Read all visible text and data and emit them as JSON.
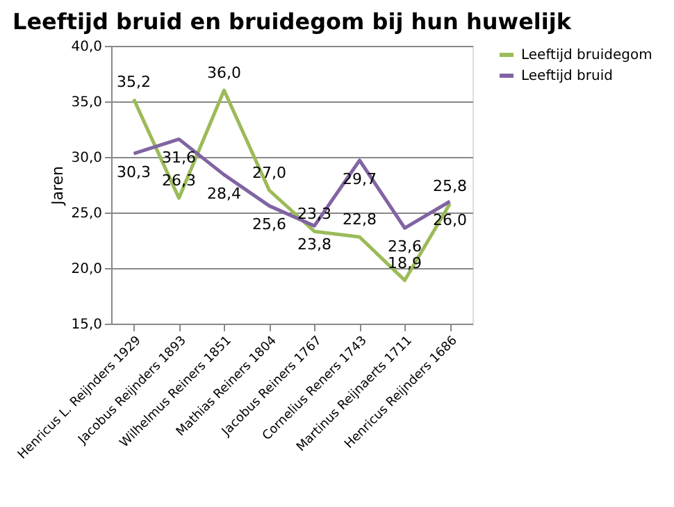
{
  "chart_data": {
    "type": "line",
    "title": "Leeftijd bruid en bruidegom bij hun huwelijk",
    "ylabel": "Jaren",
    "categories": [
      "Henricus L. Reijnders 1929",
      "Jacobus Reijnders 1893",
      "Wilhelmus Reiners 1851",
      "Mathias Reiners 1804",
      "Jacobus Reiners 1767",
      "Cornelius Reners 1743",
      "Martinus Reijnaerts 1711",
      "Henricus Reijnders 1686"
    ],
    "series": [
      {
        "name": "Leeftijd bruidegom",
        "color": "#9bbb59",
        "values": [
          35.2,
          26.3,
          36.0,
          27.0,
          23.3,
          22.8,
          18.9,
          25.8
        ],
        "value_labels": [
          "35,2",
          "26,3",
          "36,0",
          "27,0",
          "23,3",
          "22,8",
          "18,9",
          "25,8"
        ]
      },
      {
        "name": "Leeftijd bruid",
        "color": "#8064a2",
        "values": [
          30.3,
          31.6,
          28.4,
          25.6,
          23.8,
          29.7,
          23.6,
          26.0
        ],
        "value_labels": [
          "30,3",
          "31,6",
          "28,4",
          "25,6",
          "23,8",
          "29,7",
          "23,6",
          "26,0"
        ]
      }
    ],
    "ylim": [
      15,
      40
    ],
    "yticks": [
      {
        "value": 15,
        "label": "15,0"
      },
      {
        "value": 20,
        "label": "20,0"
      },
      {
        "value": 25,
        "label": "25,0"
      },
      {
        "value": 30,
        "label": "30,0"
      },
      {
        "value": 35,
        "label": "35,0"
      },
      {
        "value": 40,
        "label": "40,0"
      }
    ],
    "grid": "y",
    "legend": "right",
    "marker": "none",
    "line_style": "solid"
  }
}
